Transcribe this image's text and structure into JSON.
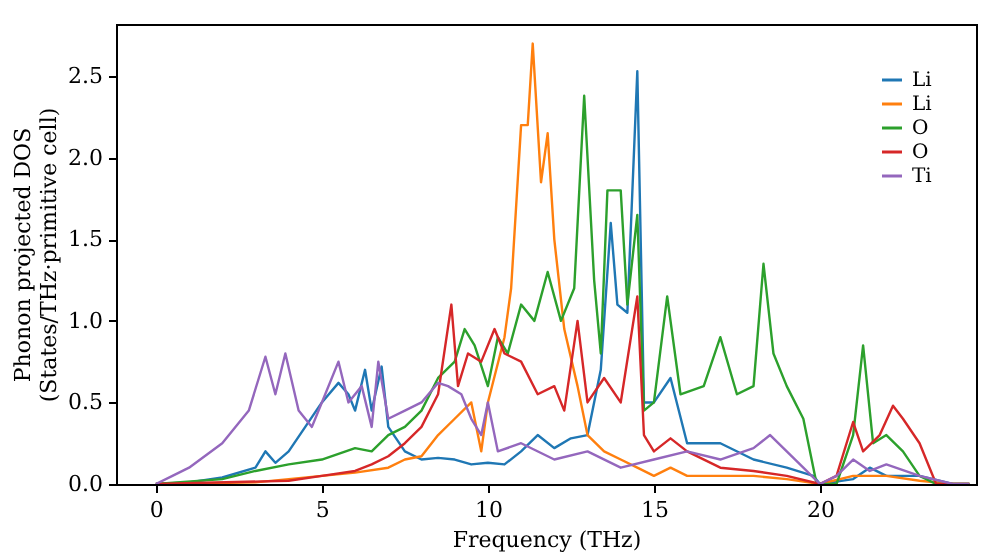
{
  "chart_data": {
    "type": "line",
    "xlabel": "Frequency (THz)",
    "ylabel": "Phonon projected DOS\n(States/THz·primitive cell)",
    "xlim": [
      -1.2,
      24.7
    ],
    "ylim": [
      0,
      2.82
    ],
    "xticks": [
      0,
      5,
      10,
      15,
      20
    ],
    "yticks": [
      {
        "value": 0,
        "label": "0.0"
      },
      {
        "value": 0.5,
        "label": "0.5"
      },
      {
        "value": 1,
        "label": "1.0"
      },
      {
        "value": 1.5,
        "label": "1.5"
      },
      {
        "value": 2,
        "label": "2.0"
      },
      {
        "value": 2.5,
        "label": "2.5"
      }
    ],
    "grid": false,
    "legend": "top right",
    "marker": "none",
    "line_style": "solid",
    "series": [
      {
        "name": "Li",
        "color": "#1f77b4",
        "x": [
          0,
          1,
          2,
          3,
          3.3,
          3.6,
          4,
          4.5,
          5,
          5.5,
          5.8,
          6,
          6.3,
          6.5,
          6.8,
          7,
          7.5,
          8,
          8.5,
          9,
          9.5,
          10,
          10.5,
          11,
          11.5,
          12,
          12.5,
          13,
          13.4,
          13.7,
          13.9,
          14.2,
          14.5,
          14.7,
          15,
          15.5,
          16,
          17,
          18,
          19,
          19.8,
          20,
          21,
          21.5,
          22,
          23,
          24,
          24.5
        ],
        "values": [
          0,
          0.01,
          0.04,
          0.1,
          0.2,
          0.13,
          0.2,
          0.35,
          0.5,
          0.62,
          0.55,
          0.45,
          0.7,
          0.45,
          0.72,
          0.35,
          0.2,
          0.15,
          0.16,
          0.15,
          0.12,
          0.13,
          0.12,
          0.2,
          0.3,
          0.22,
          0.28,
          0.3,
          0.7,
          1.6,
          1.1,
          1.05,
          2.53,
          0.5,
          0.5,
          0.65,
          0.25,
          0.25,
          0.15,
          0.1,
          0.05,
          0,
          0.03,
          0.1,
          0.05,
          0.05,
          0,
          0
        ]
      },
      {
        "name": "Li",
        "color": "#ff7f0e",
        "x": [
          0,
          3,
          5,
          6,
          7,
          7.5,
          8,
          8.5,
          9,
          9.5,
          9.8,
          10,
          10.5,
          10.7,
          11,
          11.2,
          11.35,
          11.6,
          11.8,
          12,
          12.3,
          12.7,
          13,
          13.5,
          14,
          14.5,
          15,
          15.5,
          16,
          17,
          18,
          19,
          20,
          21,
          22,
          23,
          24,
          24.5
        ],
        "values": [
          0,
          0.01,
          0.05,
          0.07,
          0.1,
          0.15,
          0.17,
          0.3,
          0.4,
          0.5,
          0.2,
          0.5,
          0.9,
          1.2,
          2.2,
          2.2,
          2.7,
          1.85,
          2.15,
          1.5,
          0.95,
          0.6,
          0.3,
          0.2,
          0.15,
          0.1,
          0.05,
          0.1,
          0.05,
          0.05,
          0.05,
          0.03,
          0,
          0.05,
          0.05,
          0.02,
          0,
          0
        ]
      },
      {
        "name": "O",
        "color": "#2ca02c",
        "x": [
          0,
          2,
          3,
          4,
          5,
          6,
          6.5,
          7,
          7.5,
          8,
          8.5,
          9,
          9.3,
          9.6,
          10,
          10.3,
          10.6,
          11,
          11.4,
          11.8,
          12.2,
          12.6,
          12.9,
          13.2,
          13.4,
          13.6,
          14,
          14.2,
          14.5,
          14.7,
          15,
          15.4,
          15.8,
          16.5,
          17,
          17.5,
          18,
          18.3,
          18.6,
          19,
          19.5,
          19.9,
          20.5,
          21,
          21.3,
          21.6,
          22,
          22.5,
          23,
          23.5,
          24.5
        ],
        "values": [
          0,
          0.03,
          0.08,
          0.12,
          0.15,
          0.22,
          0.2,
          0.3,
          0.35,
          0.45,
          0.65,
          0.75,
          0.95,
          0.85,
          0.6,
          0.9,
          0.8,
          1.1,
          1.0,
          1.3,
          1.0,
          1.2,
          2.38,
          1.25,
          0.8,
          1.8,
          1.8,
          1.1,
          1.65,
          0.45,
          0.5,
          1.15,
          0.55,
          0.6,
          0.9,
          0.55,
          0.6,
          1.35,
          0.8,
          0.6,
          0.4,
          0,
          0,
          0.3,
          0.85,
          0.25,
          0.3,
          0.2,
          0.05,
          0,
          0
        ]
      },
      {
        "name": "O",
        "color": "#d62728",
        "x": [
          0,
          4,
          5,
          6,
          6.5,
          7,
          7.5,
          8,
          8.5,
          8.9,
          9.1,
          9.4,
          9.8,
          10.2,
          10.5,
          11,
          11.5,
          12,
          12.3,
          12.7,
          13,
          13.5,
          14,
          14.5,
          14.7,
          15,
          15.5,
          16,
          17,
          18,
          19,
          20,
          20.5,
          21,
          21.3,
          21.8,
          22.2,
          22.5,
          23,
          23.5,
          24.5
        ],
        "values": [
          0,
          0.02,
          0.05,
          0.08,
          0.12,
          0.17,
          0.25,
          0.35,
          0.55,
          1.1,
          0.6,
          0.8,
          0.75,
          0.95,
          0.8,
          0.75,
          0.55,
          0.6,
          0.45,
          1.0,
          0.5,
          0.65,
          0.5,
          1.15,
          0.3,
          0.2,
          0.28,
          0.2,
          0.1,
          0.08,
          0.05,
          0,
          0.05,
          0.38,
          0.2,
          0.3,
          0.48,
          0.4,
          0.25,
          0,
          0
        ]
      },
      {
        "name": "Ti",
        "color": "#9467bd",
        "x": [
          0,
          0.5,
          1,
          2,
          2.8,
          3.3,
          3.6,
          3.9,
          4.3,
          4.7,
          5,
          5.5,
          5.8,
          6.2,
          6.5,
          6.7,
          7,
          7.5,
          8,
          8.5,
          8.8,
          9.2,
          9.5,
          9.8,
          10,
          10.3,
          11,
          12,
          13,
          14,
          15,
          16,
          17,
          18,
          18.5,
          19,
          19.5,
          20,
          20.5,
          21,
          21.5,
          22,
          23,
          24,
          24.5
        ],
        "values": [
          0,
          0.05,
          0.1,
          0.25,
          0.45,
          0.78,
          0.55,
          0.8,
          0.45,
          0.35,
          0.5,
          0.75,
          0.5,
          0.6,
          0.35,
          0.75,
          0.4,
          0.45,
          0.5,
          0.62,
          0.6,
          0.55,
          0.4,
          0.3,
          0.5,
          0.2,
          0.25,
          0.15,
          0.2,
          0.1,
          0.15,
          0.2,
          0.15,
          0.22,
          0.3,
          0.2,
          0.1,
          0,
          0.05,
          0.15,
          0.08,
          0.12,
          0.05,
          0,
          0
        ]
      }
    ]
  }
}
